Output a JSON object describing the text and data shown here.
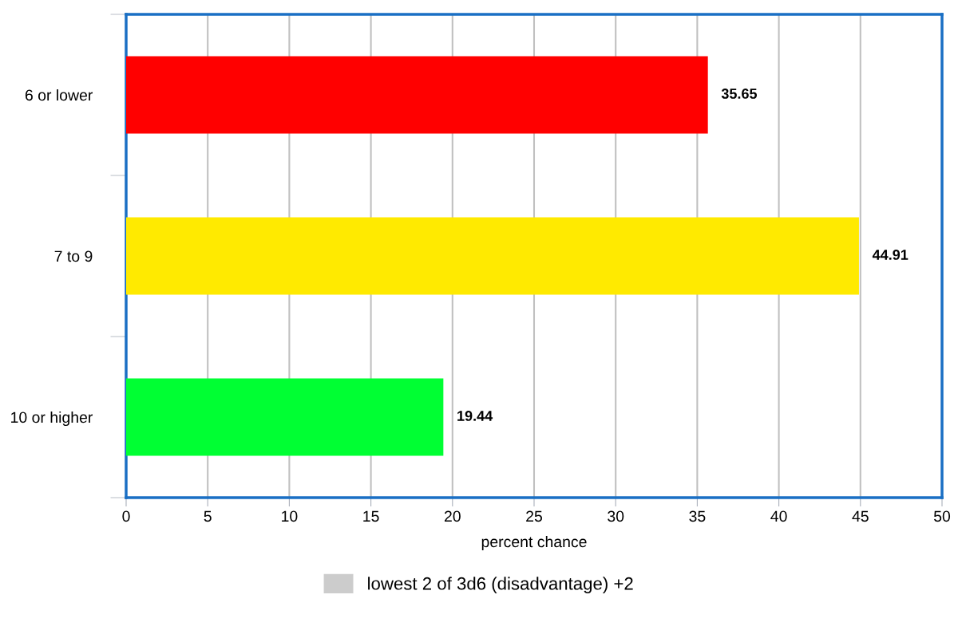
{
  "chart_data": {
    "type": "bar",
    "orientation": "horizontal",
    "xlabel": "percent chance",
    "categories": [
      "6 or lower",
      "7 to 9",
      "10 or higher"
    ],
    "series": [
      {
        "name": "lowest 2 of 3d6 (disadvantage) +2",
        "colors": [
          "#ff0000",
          "#ffea00",
          "#00ff33"
        ],
        "values": [
          35.65,
          44.91,
          19.44
        ]
      }
    ],
    "xlim": [
      0,
      50
    ],
    "xticks": [
      0,
      5,
      10,
      15,
      20,
      25,
      30,
      35,
      40,
      45,
      50
    ],
    "grid": "x",
    "legend": "bottom",
    "data_labels": true
  }
}
